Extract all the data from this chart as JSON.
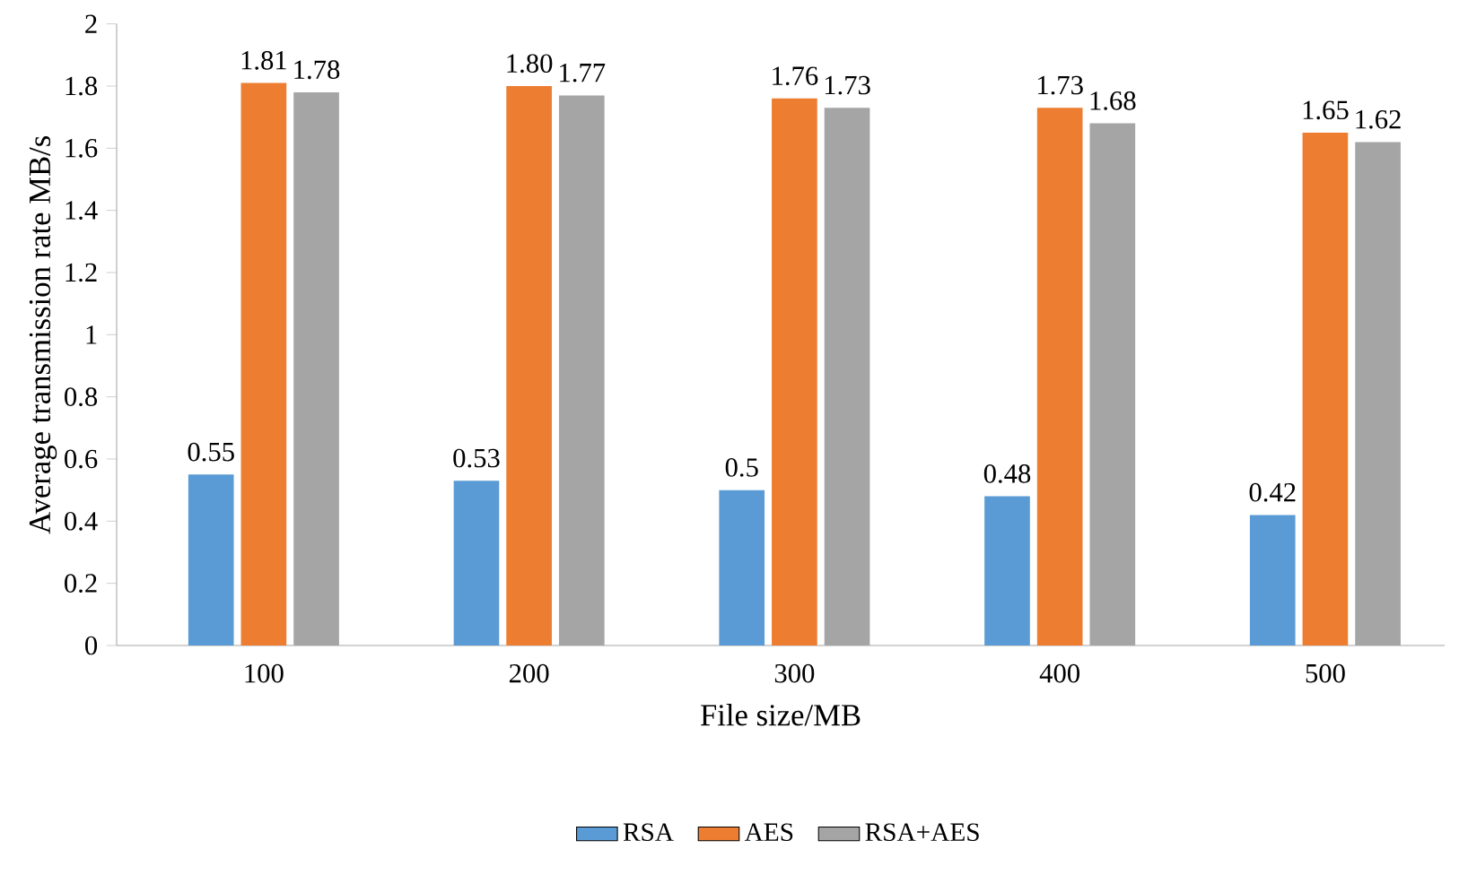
{
  "chart_data": {
    "type": "bar",
    "xlabel": "File size/MB",
    "ylabel": "Average transmission rate MB/s",
    "categories": [
      "100",
      "200",
      "300",
      "400",
      "500"
    ],
    "series": [
      {
        "name": "RSA",
        "color": "#5b9bd5",
        "values": [
          0.55,
          0.53,
          0.5,
          0.48,
          0.42
        ],
        "value_labels": [
          "0.55",
          "0.53",
          "0.5",
          "0.48",
          "0.42"
        ]
      },
      {
        "name": "AES",
        "color": "#ed7d31",
        "values": [
          1.81,
          1.8,
          1.76,
          1.73,
          1.65
        ],
        "value_labels": [
          "1.81",
          "1.80",
          "1.76",
          "1.73",
          "1.65"
        ]
      },
      {
        "name": "RSA+AES",
        "color": "#a5a5a5",
        "values": [
          1.78,
          1.77,
          1.73,
          1.68,
          1.62
        ],
        "value_labels": [
          "1.78",
          "1.77",
          "1.73",
          "1.68",
          "1.62"
        ]
      }
    ],
    "ylim": [
      0,
      2
    ],
    "yticks": [
      0,
      0.2,
      0.4,
      0.6,
      0.8,
      1,
      1.2,
      1.4,
      1.6,
      1.8,
      2
    ],
    "grid": false,
    "legend": "bottom"
  }
}
